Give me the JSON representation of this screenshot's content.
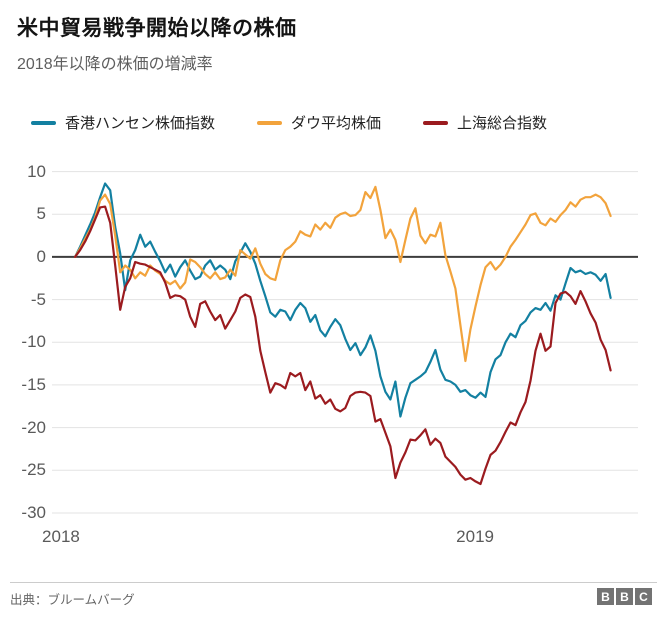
{
  "header": {
    "title": "米中貿易戦争開始以降の株価",
    "subtitle": "2018年以降の株価の増減率"
  },
  "chart_data": {
    "type": "line",
    "title": "米中貿易戦争開始以降の株価",
    "subtitle": "2018年以降の株価の増減率",
    "unit": "percent_change",
    "grid": true,
    "legend_position": "top",
    "ylim": [
      -30,
      10
    ],
    "yticks": [
      10,
      5,
      0,
      -5,
      -10,
      -15,
      -20,
      -25,
      -30
    ],
    "xticks": [
      {
        "label": "2018",
        "month": 0
      },
      {
        "label": "2019",
        "month": 12
      }
    ],
    "x_unit": "months_since_jan_2018",
    "x_start_month": 0.41,
    "x_step_month": 0.145,
    "series": [
      {
        "name": "香港ハンセン株価指数",
        "color": "#1380A1",
        "values": [
          0,
          1.2,
          2.5,
          3.8,
          5.2,
          7.0,
          8.6,
          7.8,
          3.5,
          0.4,
          -3.9,
          -0.4,
          0.8,
          2.6,
          1.2,
          1.8,
          0.6,
          -0.5,
          -1.8,
          -0.9,
          -2.3,
          -1.2,
          -0.4,
          -1.6,
          -2.6,
          -2.3,
          -1.0,
          -0.4,
          -1.5,
          -1.0,
          -1.5,
          -2.6,
          -0.5,
          0.5,
          1.6,
          0.6,
          -0.8,
          -2.8,
          -4.6,
          -6.5,
          -7.0,
          -6.2,
          -6.4,
          -7.4,
          -6.2,
          -5.4,
          -6.0,
          -7.6,
          -6.8,
          -8.6,
          -9.3,
          -8.2,
          -7.3,
          -8.0,
          -9.6,
          -10.9,
          -10.1,
          -11.5,
          -10.6,
          -9.2,
          -11.0,
          -14.0,
          -15.8,
          -16.7,
          -14.6,
          -18.7,
          -16.5,
          -14.8,
          -14.4,
          -14.0,
          -13.5,
          -12.3,
          -10.9,
          -13.2,
          -14.4,
          -14.6,
          -15.0,
          -15.8,
          -15.6,
          -16.2,
          -16.5,
          -15.9,
          -16.4,
          -13.5,
          -12.0,
          -11.5,
          -10.0,
          -9.0,
          -9.4,
          -8.0,
          -7.5,
          -6.5,
          -6.0,
          -6.2,
          -5.4,
          -6.3,
          -4.5,
          -5.0,
          -3.1,
          -1.3,
          -1.8,
          -1.6,
          -2.0,
          -1.8,
          -2.1,
          -2.8,
          -2.0,
          -4.8
        ]
      },
      {
        "name": "ダウ平均株価",
        "color": "#F2A33C",
        "values": [
          0,
          1.0,
          2.1,
          3.2,
          4.6,
          6.6,
          7.3,
          6.2,
          2.5,
          -1.8,
          -1.0,
          -1.5,
          -2.5,
          -1.8,
          -2.2,
          -1.0,
          -1.6,
          -2.0,
          -2.8,
          -3.2,
          -2.8,
          -3.7,
          -3.0,
          -0.3,
          -0.6,
          -1.2,
          -2.0,
          -2.5,
          -1.8,
          -2.6,
          -2.4,
          -1.5,
          -2.2,
          0.8,
          0.3,
          -0.2,
          1.0,
          -0.8,
          -2.0,
          -2.5,
          -2.7,
          -0.4,
          0.8,
          1.2,
          1.8,
          3.0,
          2.6,
          2.4,
          3.8,
          3.2,
          4.0,
          3.4,
          4.6,
          5.0,
          5.2,
          4.8,
          4.9,
          5.5,
          7.6,
          6.9,
          8.2,
          5.5,
          2.2,
          3.2,
          2.0,
          -0.6,
          2.0,
          4.5,
          5.7,
          2.5,
          1.6,
          2.6,
          2.4,
          4.0,
          0.2,
          -1.7,
          -3.7,
          -8.0,
          -12.2,
          -8.5,
          -5.8,
          -3.3,
          -1.2,
          -0.6,
          -1.5,
          -0.9,
          0,
          1.2,
          2.0,
          2.9,
          3.8,
          4.9,
          5.1,
          4.0,
          3.7,
          4.5,
          4.1,
          4.9,
          5.5,
          6.4,
          5.9,
          6.7,
          7.0,
          7.0,
          7.3,
          7.0,
          6.3,
          4.8
        ]
      },
      {
        "name": "上海総合指数",
        "color": "#9B1B1F",
        "values": [
          0,
          0.8,
          1.8,
          3.0,
          4.4,
          5.8,
          5.9,
          4.0,
          -1.0,
          -6.2,
          -3.5,
          -2.5,
          -0.6,
          -0.8,
          -0.9,
          -1.2,
          -1.5,
          -1.8,
          -3.0,
          -4.8,
          -4.5,
          -4.6,
          -5.0,
          -7.0,
          -8.2,
          -5.5,
          -5.2,
          -6.4,
          -7.4,
          -6.8,
          -8.4,
          -7.4,
          -6.4,
          -4.8,
          -4.4,
          -4.7,
          -7.0,
          -11.0,
          -13.5,
          -15.9,
          -14.8,
          -15.0,
          -15.4,
          -13.6,
          -14.0,
          -13.6,
          -15.6,
          -14.6,
          -16.6,
          -16.2,
          -17.2,
          -16.7,
          -17.8,
          -18.1,
          -17.7,
          -16.3,
          -15.9,
          -15.8,
          -15.9,
          -16.3,
          -19.3,
          -19.0,
          -20.6,
          -22.2,
          -25.9,
          -24.1,
          -22.9,
          -21.4,
          -21.5,
          -20.9,
          -20.2,
          -22.0,
          -21.3,
          -21.8,
          -23.4,
          -24.0,
          -24.6,
          -25.5,
          -26.1,
          -25.9,
          -26.3,
          -26.6,
          -24.8,
          -23.2,
          -22.7,
          -21.7,
          -20.5,
          -19.4,
          -19.7,
          -18.2,
          -17.0,
          -14.5,
          -11.0,
          -9.0,
          -11.0,
          -10.5,
          -5.4,
          -4.3,
          -4.1,
          -4.6,
          -5.5,
          -4.0,
          -5.2,
          -6.6,
          -7.7,
          -9.7,
          -10.9,
          -13.3
        ]
      }
    ]
  },
  "footer": {
    "source": "出典：ブルームバーグ",
    "logo_letters": [
      "B",
      "B",
      "C"
    ]
  }
}
